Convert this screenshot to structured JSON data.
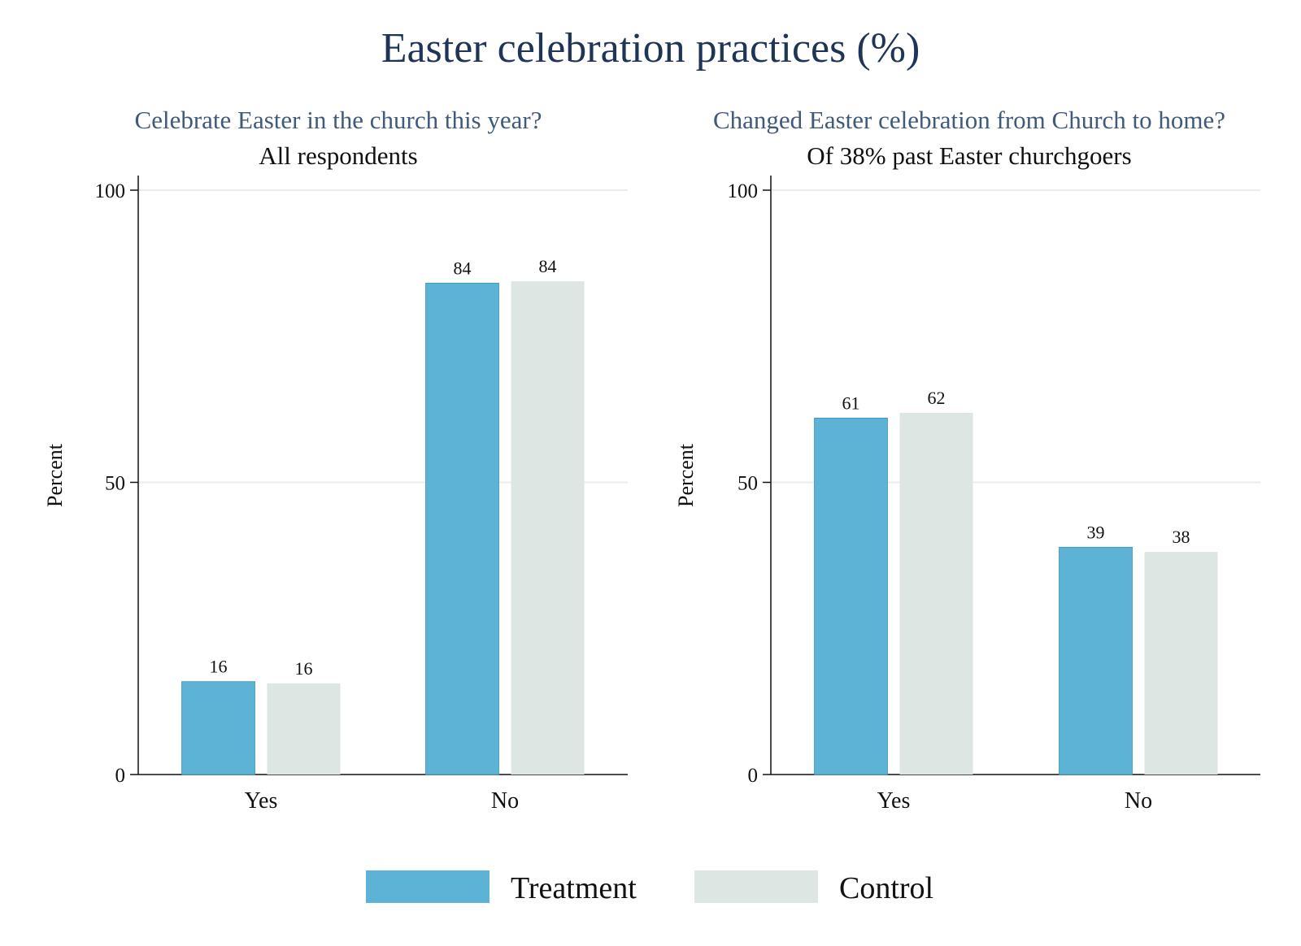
{
  "title": "Easter celebration practices (%)",
  "colors": {
    "treatment": "#5cb3d6",
    "control": "#dde6e3",
    "grid": "#e8eeee",
    "axis": "#111111"
  },
  "legend": [
    {
      "name": "Treatment",
      "color": "#5cb3d6"
    },
    {
      "name": "Control",
      "color": "#dde6e3"
    }
  ],
  "chart_data": [
    {
      "type": "bar",
      "title": "Celebrate Easter in the church this year?",
      "subtitle": "All respondents",
      "ylabel": "Percent",
      "ylim": [
        0,
        100
      ],
      "yticks": [
        0,
        50,
        100
      ],
      "categories": [
        "Yes",
        "No"
      ],
      "series": [
        {
          "name": "Treatment",
          "values": [
            16,
            84
          ],
          "values_precise": [
            15.9,
            84.1
          ]
        },
        {
          "name": "Control",
          "values": [
            16,
            84
          ],
          "values_precise": [
            15.6,
            84.4
          ]
        }
      ]
    },
    {
      "type": "bar",
      "title": "Changed Easter celebration from Church to home?",
      "subtitle": "Of 38% past Easter churchgoers",
      "ylabel": "Percent",
      "ylim": [
        0,
        100
      ],
      "yticks": [
        0,
        50,
        100
      ],
      "categories": [
        "Yes",
        "No"
      ],
      "series": [
        {
          "name": "Treatment",
          "values": [
            61,
            39
          ],
          "values_precise": [
            61.0,
            38.9
          ]
        },
        {
          "name": "Control",
          "values": [
            62,
            38
          ],
          "values_precise": [
            61.9,
            38.1
          ]
        }
      ]
    }
  ]
}
